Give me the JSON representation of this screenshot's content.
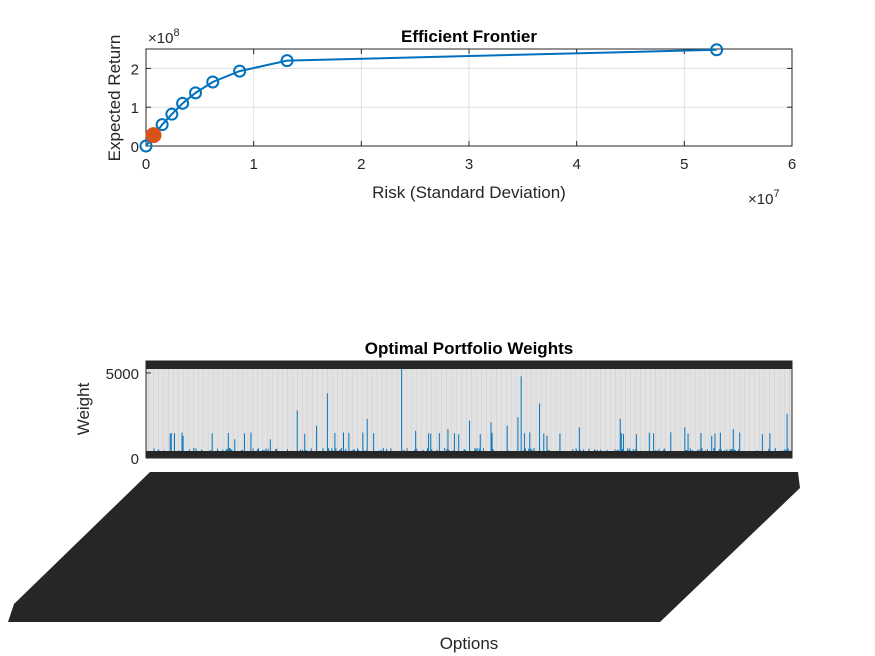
{
  "chart_data": [
    {
      "type": "line",
      "title": "Efficient Frontier",
      "xlabel": "Risk (Standard Deviation)",
      "ylabel": "Expected Return",
      "x_exponent_label": "×10",
      "x_exponent": "7",
      "y_exponent_label": "×10",
      "y_exponent": "8",
      "xlim": [
        0,
        6
      ],
      "ylim": [
        0,
        2.5
      ],
      "x_ticks": [
        "0",
        "1",
        "2",
        "3",
        "4",
        "5",
        "6"
      ],
      "y_ticks": [
        "0",
        "1",
        "2"
      ],
      "grid": true,
      "series": [
        {
          "x": [
            0.0,
            0.15,
            0.24,
            0.34,
            0.46,
            0.62,
            0.87,
            1.31,
            5.3
          ],
          "y": [
            0.0,
            0.55,
            0.82,
            1.1,
            1.37,
            1.65,
            1.93,
            2.2,
            2.48
          ],
          "color": "#0072bd"
        },
        {
          "x": [
            0.07
          ],
          "y": [
            0.28
          ],
          "color": "#d95319"
        }
      ]
    },
    {
      "type": "bar",
      "title": "Optimal Portfolio Weights",
      "xlabel": "Options",
      "ylabel": "Weight",
      "ylim": [
        0,
        5700
      ],
      "y_ticks": [
        "0",
        "5000"
      ],
      "bar_color": "#0072bd",
      "bar_count": 600,
      "peaks": [
        {
          "index": 34,
          "value": 1300
        },
        {
          "index": 82,
          "value": 1100
        },
        {
          "index": 115,
          "value": 1100
        },
        {
          "index": 140,
          "value": 2800
        },
        {
          "index": 158,
          "value": 1900
        },
        {
          "index": 168,
          "value": 3800
        },
        {
          "index": 205,
          "value": 2300
        },
        {
          "index": 237,
          "value": 5600
        },
        {
          "index": 250,
          "value": 1600
        },
        {
          "index": 280,
          "value": 1700
        },
        {
          "index": 290,
          "value": 1400
        },
        {
          "index": 300,
          "value": 2200
        },
        {
          "index": 310,
          "value": 1400
        },
        {
          "index": 320,
          "value": 2100
        },
        {
          "index": 335,
          "value": 1900
        },
        {
          "index": 345,
          "value": 2400
        },
        {
          "index": 348,
          "value": 4800
        },
        {
          "index": 365,
          "value": 3200
        },
        {
          "index": 372,
          "value": 1300
        },
        {
          "index": 402,
          "value": 1800
        },
        {
          "index": 440,
          "value": 2300
        },
        {
          "index": 455,
          "value": 1400
        },
        {
          "index": 500,
          "value": 1800
        },
        {
          "index": 525,
          "value": 1300
        },
        {
          "index": 545,
          "value": 1700
        },
        {
          "index": 572,
          "value": 1400
        },
        {
          "index": 595,
          "value": 2600
        }
      ],
      "baseline_level": 350
    }
  ]
}
